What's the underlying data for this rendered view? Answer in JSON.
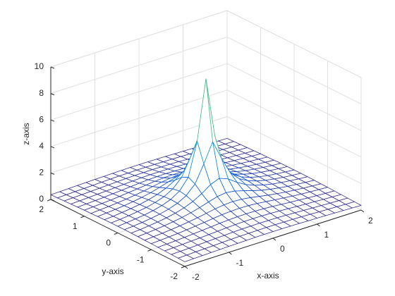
{
  "chart_data": {
    "type": "mesh",
    "xlabel": "x-axis",
    "ylabel": "y-axis",
    "zlabel": "z-axis",
    "xlim": [
      -2,
      2
    ],
    "ylim": [
      -2,
      2
    ],
    "zlim": [
      0,
      10
    ],
    "xticks": [
      -2,
      -1,
      0,
      1,
      2
    ],
    "yticks": [
      -2,
      -1,
      0,
      1,
      2
    ],
    "zticks": [
      0,
      2,
      4,
      6,
      8,
      10
    ],
    "grid": true,
    "colormap": "parula",
    "x": [
      -2,
      -1.8,
      -1.6,
      -1.4,
      -1.2,
      -1,
      -0.8,
      -0.6,
      -0.4,
      -0.2,
      0,
      0.2,
      0.4,
      0.6,
      0.8,
      1,
      1.2,
      1.4,
      1.6,
      1.8,
      2
    ],
    "y": [
      -2,
      -1.8,
      -1.6,
      -1.4,
      -1.2,
      -1,
      -0.8,
      -0.6,
      -0.4,
      -0.2,
      0,
      0.2,
      0.4,
      0.6,
      0.8,
      1,
      1.2,
      1.4,
      1.6,
      1.8,
      2
    ],
    "z": [
      [
        0.35,
        0.37,
        0.39,
        0.41,
        0.43,
        0.45,
        0.46,
        0.48,
        0.49,
        0.5,
        0.5,
        0.5,
        0.49,
        0.48,
        0.46,
        0.45,
        0.43,
        0.41,
        0.39,
        0.37,
        0.35
      ],
      [
        0.37,
        0.39,
        0.42,
        0.44,
        0.46,
        0.49,
        0.51,
        0.53,
        0.54,
        0.55,
        0.56,
        0.55,
        0.54,
        0.53,
        0.51,
        0.49,
        0.46,
        0.44,
        0.42,
        0.39,
        0.37
      ],
      [
        0.39,
        0.42,
        0.44,
        0.47,
        0.5,
        0.53,
        0.56,
        0.59,
        0.61,
        0.62,
        0.63,
        0.62,
        0.61,
        0.59,
        0.56,
        0.53,
        0.5,
        0.47,
        0.44,
        0.42,
        0.39
      ],
      [
        0.41,
        0.44,
        0.47,
        0.51,
        0.54,
        0.58,
        0.62,
        0.66,
        0.69,
        0.71,
        0.71,
        0.71,
        0.69,
        0.66,
        0.62,
        0.58,
        0.54,
        0.51,
        0.47,
        0.44,
        0.41
      ],
      [
        0.43,
        0.46,
        0.5,
        0.54,
        0.59,
        0.64,
        0.69,
        0.75,
        0.79,
        0.82,
        0.83,
        0.82,
        0.79,
        0.75,
        0.69,
        0.64,
        0.59,
        0.54,
        0.5,
        0.46,
        0.43
      ],
      [
        0.45,
        0.49,
        0.53,
        0.58,
        0.64,
        0.71,
        0.78,
        0.86,
        0.93,
        0.98,
        1,
        0.98,
        0.93,
        0.86,
        0.78,
        0.71,
        0.64,
        0.58,
        0.53,
        0.49,
        0.45
      ],
      [
        0.46,
        0.51,
        0.56,
        0.62,
        0.69,
        0.78,
        0.88,
        1,
        1.12,
        1.21,
        1.25,
        1.21,
        1.12,
        1,
        0.88,
        0.78,
        0.69,
        0.62,
        0.56,
        0.51,
        0.46
      ],
      [
        0.48,
        0.53,
        0.59,
        0.66,
        0.75,
        0.86,
        1,
        1.18,
        1.39,
        1.58,
        1.67,
        1.58,
        1.39,
        1.18,
        1,
        0.86,
        0.75,
        0.66,
        0.59,
        0.53,
        0.48
      ],
      [
        0.49,
        0.54,
        0.61,
        0.69,
        0.79,
        0.93,
        1.12,
        1.39,
        1.77,
        2.24,
        2.5,
        2.24,
        1.77,
        1.39,
        1.12,
        0.93,
        0.79,
        0.69,
        0.61,
        0.54,
        0.49
      ],
      [
        0.5,
        0.55,
        0.62,
        0.71,
        0.82,
        0.98,
        1.21,
        1.58,
        2.24,
        3.54,
        5,
        3.54,
        2.24,
        1.58,
        1.21,
        0.98,
        0.82,
        0.71,
        0.62,
        0.55,
        0.5
      ],
      [
        0.5,
        0.56,
        0.63,
        0.71,
        0.83,
        1,
        1.25,
        1.67,
        2.5,
        5,
        9.5,
        5,
        2.5,
        1.67,
        1.25,
        1,
        0.83,
        0.71,
        0.63,
        0.56,
        0.5
      ],
      [
        0.5,
        0.55,
        0.62,
        0.71,
        0.82,
        0.98,
        1.21,
        1.58,
        2.24,
        3.54,
        5,
        3.54,
        2.24,
        1.58,
        1.21,
        0.98,
        0.82,
        0.71,
        0.62,
        0.55,
        0.5
      ],
      [
        0.49,
        0.54,
        0.61,
        0.69,
        0.79,
        0.93,
        1.12,
        1.39,
        1.77,
        2.24,
        2.5,
        2.24,
        1.77,
        1.39,
        1.12,
        0.93,
        0.79,
        0.69,
        0.61,
        0.54,
        0.49
      ],
      [
        0.48,
        0.53,
        0.59,
        0.66,
        0.75,
        0.86,
        1,
        1.18,
        1.39,
        1.58,
        1.67,
        1.58,
        1.39,
        1.18,
        1,
        0.86,
        0.75,
        0.66,
        0.59,
        0.53,
        0.48
      ],
      [
        0.46,
        0.51,
        0.56,
        0.62,
        0.69,
        0.78,
        0.88,
        1,
        1.12,
        1.21,
        1.25,
        1.21,
        1.12,
        1,
        0.88,
        0.78,
        0.69,
        0.62,
        0.56,
        0.51,
        0.46
      ],
      [
        0.45,
        0.49,
        0.53,
        0.58,
        0.64,
        0.71,
        0.78,
        0.86,
        0.93,
        0.98,
        1,
        0.98,
        0.93,
        0.86,
        0.78,
        0.71,
        0.64,
        0.58,
        0.53,
        0.49,
        0.45
      ],
      [
        0.43,
        0.46,
        0.5,
        0.54,
        0.59,
        0.64,
        0.69,
        0.75,
        0.79,
        0.82,
        0.83,
        0.82,
        0.79,
        0.75,
        0.69,
        0.64,
        0.59,
        0.54,
        0.5,
        0.46,
        0.43
      ],
      [
        0.41,
        0.44,
        0.47,
        0.51,
        0.54,
        0.58,
        0.62,
        0.66,
        0.69,
        0.71,
        0.71,
        0.71,
        0.69,
        0.66,
        0.62,
        0.58,
        0.54,
        0.51,
        0.47,
        0.44,
        0.41
      ],
      [
        0.39,
        0.42,
        0.44,
        0.47,
        0.5,
        0.53,
        0.56,
        0.59,
        0.61,
        0.62,
        0.63,
        0.62,
        0.61,
        0.59,
        0.56,
        0.53,
        0.5,
        0.47,
        0.44,
        0.42,
        0.39
      ],
      [
        0.37,
        0.39,
        0.42,
        0.44,
        0.46,
        0.49,
        0.51,
        0.53,
        0.54,
        0.55,
        0.56,
        0.55,
        0.54,
        0.53,
        0.51,
        0.49,
        0.46,
        0.44,
        0.42,
        0.39,
        0.37
      ],
      [
        0.35,
        0.37,
        0.39,
        0.41,
        0.43,
        0.45,
        0.46,
        0.48,
        0.49,
        0.5,
        0.5,
        0.5,
        0.49,
        0.48,
        0.46,
        0.45,
        0.43,
        0.41,
        0.39,
        0.37,
        0.35
      ]
    ]
  }
}
